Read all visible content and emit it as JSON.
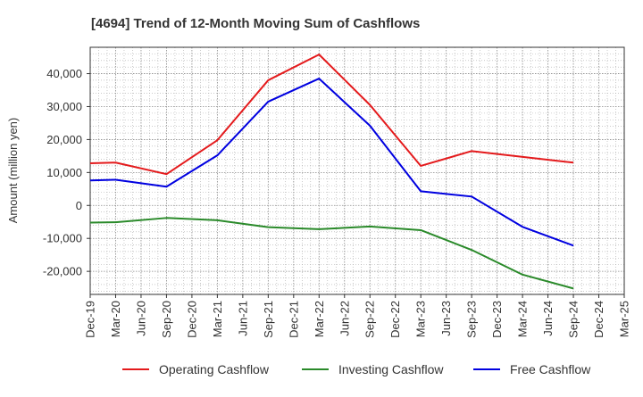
{
  "chart_data": {
    "type": "line",
    "title": "[4694]  Trend of 12-Month Moving Sum of Cashflows",
    "ylabel": "Amount (million yen)",
    "xlabel": "",
    "ylim": [
      -27000,
      48000
    ],
    "yticks": [
      -20000,
      -10000,
      0,
      10000,
      20000,
      30000,
      40000
    ],
    "ytick_labels": [
      "-20,000",
      "-10,000",
      "0",
      "10,000",
      "20,000",
      "30,000",
      "40,000"
    ],
    "categories": [
      "Dec-19",
      "Mar-20",
      "Jun-20",
      "Sep-20",
      "Dec-20",
      "Mar-21",
      "Jun-21",
      "Sep-21",
      "Dec-21",
      "Mar-22",
      "Jun-22",
      "Sep-22",
      "Dec-22",
      "Mar-23",
      "Jun-23",
      "Sep-23",
      "Dec-23",
      "Mar-24",
      "Jun-24",
      "Sep-24",
      "Dec-24",
      "Mar-25"
    ],
    "grid": true,
    "legend_position": "bottom",
    "series": [
      {
        "name": "Operating Cashflow",
        "color": "#e41a1c",
        "values": [
          12800,
          13000,
          null,
          9500,
          null,
          19800,
          null,
          38000,
          null,
          45800,
          null,
          30500,
          null,
          12000,
          null,
          16500,
          null,
          null,
          null,
          13000,
          null,
          null
        ]
      },
      {
        "name": "Investing Cashflow",
        "color": "#2a8a2a",
        "values": [
          -5200,
          -5100,
          null,
          -3800,
          null,
          -4500,
          null,
          -6600,
          null,
          -7200,
          null,
          -6400,
          null,
          -7500,
          null,
          -13500,
          null,
          -21000,
          null,
          -25200,
          null,
          null
        ]
      },
      {
        "name": "Free Cashflow",
        "color": "#0000e0",
        "values": [
          7600,
          7800,
          null,
          5700,
          null,
          15200,
          null,
          31500,
          null,
          38500,
          null,
          24200,
          null,
          4300,
          null,
          2700,
          null,
          -6500,
          null,
          -12200,
          null,
          null
        ]
      }
    ]
  }
}
